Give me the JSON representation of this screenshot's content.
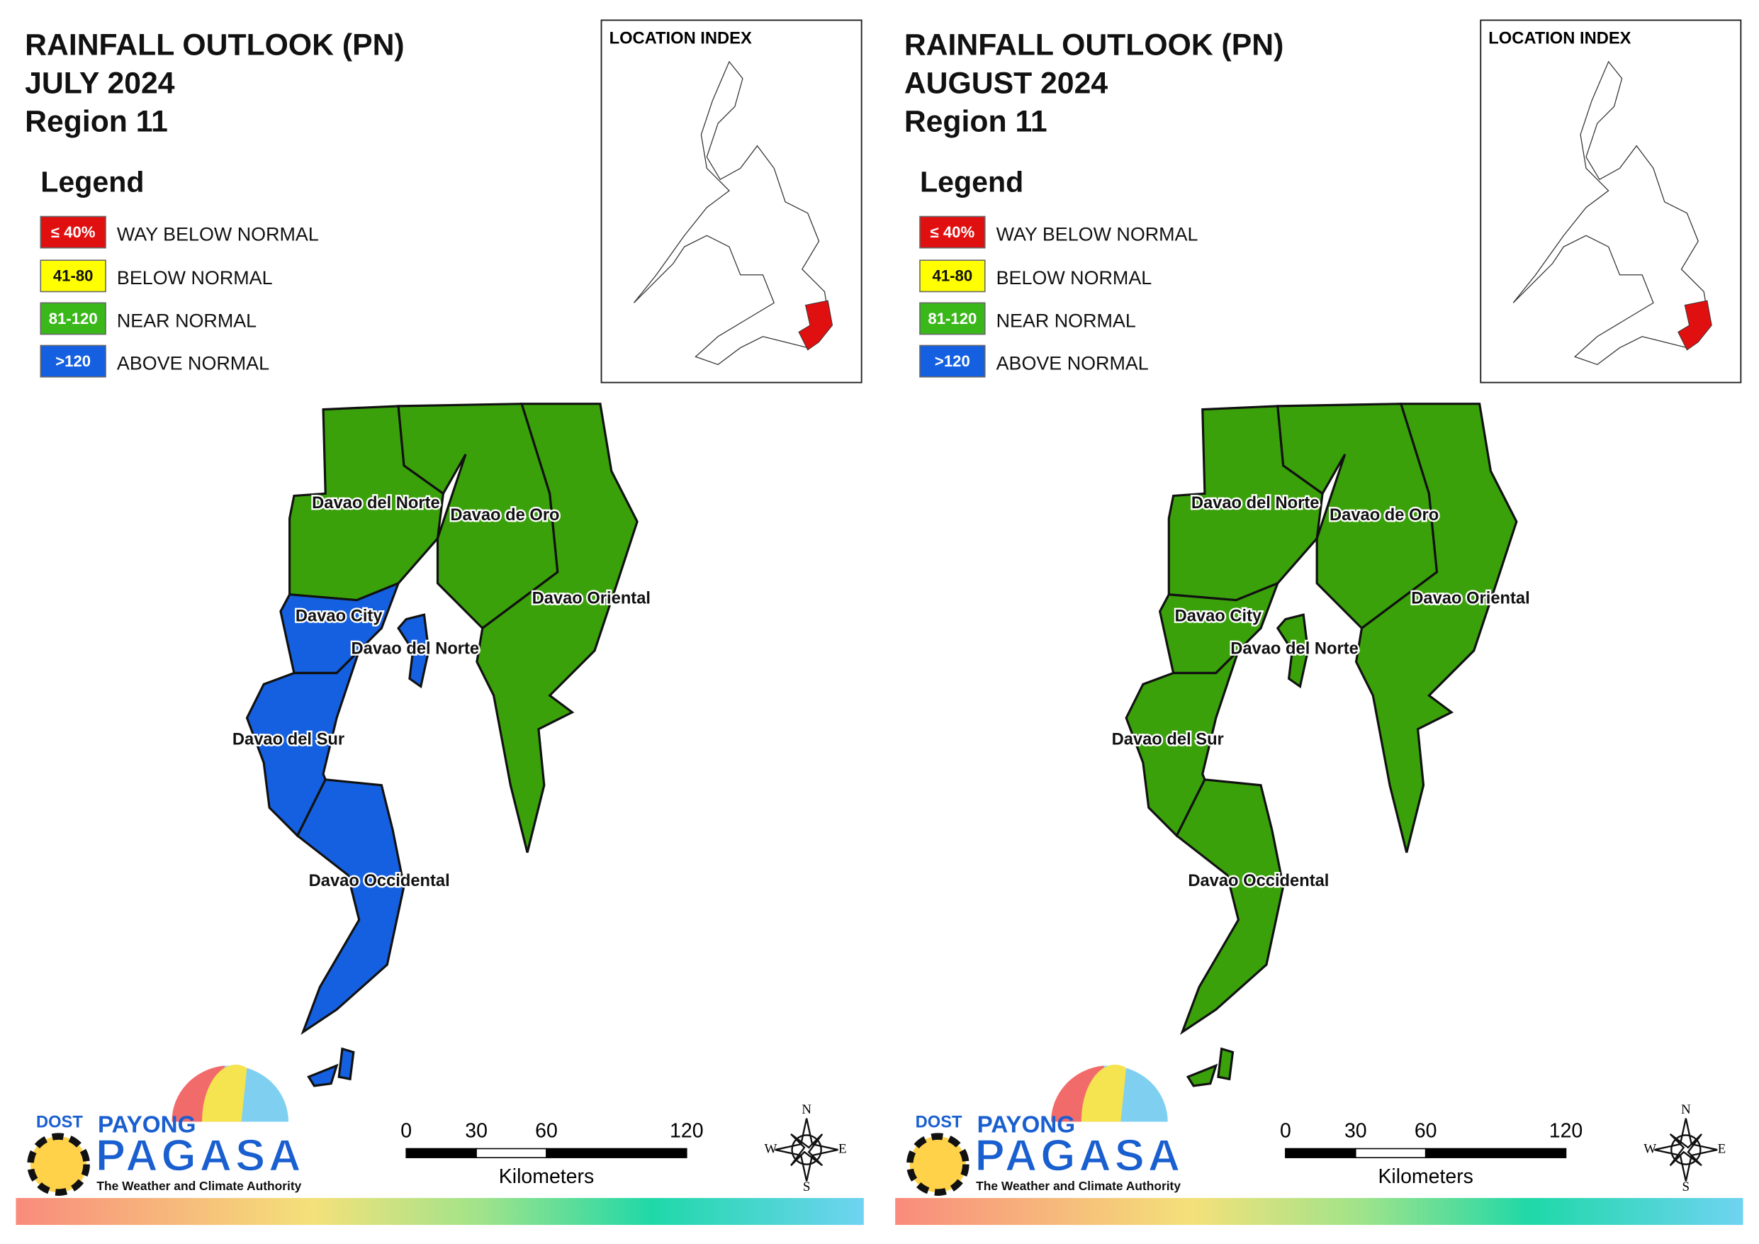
{
  "panels": [
    {
      "title": [
        "RAINFALL OUTLOOK (PN)",
        "JULY 2024",
        "Region 11"
      ],
      "legend": {
        "title": "Legend",
        "items": [
          {
            "key": "≤ 40%",
            "label": "WAY BELOW NORMAL",
            "color": "#e01010"
          },
          {
            "key": "41-80",
            "label": "BELOW NORMAL",
            "color": "#ffff00"
          },
          {
            "key": "81-120",
            "label": "NEAR NORMAL",
            "color": "#3ab81a"
          },
          {
            "key": ">120",
            "label": "ABOVE NORMAL",
            "color": "#1560e0"
          }
        ]
      },
      "location_index": "LOCATION INDEX",
      "regions": [
        {
          "label": "Davao del Norte",
          "color": "#3aa10a"
        },
        {
          "label": "Davao de Oro",
          "color": "#3aa10a"
        },
        {
          "label": "Davao Oriental",
          "color": "#3aa10a"
        },
        {
          "label": "Davao City",
          "color": "#1560e0"
        },
        {
          "label": "Davao del Norte",
          "color": "#1560e0"
        },
        {
          "label": "Davao del Sur",
          "color": "#1560e0"
        },
        {
          "label": "Davao Occidental",
          "color": "#1560e0"
        }
      ],
      "scale": {
        "ticks": [
          0,
          30,
          60,
          120
        ],
        "unit": "Kilometers"
      },
      "compass": [
        "N",
        "E",
        "S",
        "W"
      ],
      "logo": {
        "dost": "DOST",
        "payong": "PAYONG",
        "pagasa": "PAGASA",
        "tagline": "The Weather and Climate Authority"
      }
    },
    {
      "title": [
        "RAINFALL OUTLOOK (PN)",
        "AUGUST 2024",
        "Region 11"
      ],
      "legend": {
        "title": "Legend",
        "items": [
          {
            "key": "≤ 40%",
            "label": "WAY BELOW NORMAL",
            "color": "#e01010"
          },
          {
            "key": "41-80",
            "label": "BELOW NORMAL",
            "color": "#ffff00"
          },
          {
            "key": "81-120",
            "label": "NEAR NORMAL",
            "color": "#3ab81a"
          },
          {
            "key": ">120",
            "label": "ABOVE NORMAL",
            "color": "#1560e0"
          }
        ]
      },
      "location_index": "LOCATION INDEX",
      "regions": [
        {
          "label": "Davao del Norte",
          "color": "#3aa10a"
        },
        {
          "label": "Davao de Oro",
          "color": "#3aa10a"
        },
        {
          "label": "Davao Oriental",
          "color": "#3aa10a"
        },
        {
          "label": "Davao City",
          "color": "#3aa10a"
        },
        {
          "label": "Davao del Norte",
          "color": "#3aa10a"
        },
        {
          "label": "Davao del Sur",
          "color": "#3aa10a"
        },
        {
          "label": "Davao Occidental",
          "color": "#3aa10a"
        }
      ],
      "scale": {
        "ticks": [
          0,
          30,
          60,
          120
        ],
        "unit": "Kilometers"
      },
      "compass": [
        "N",
        "E",
        "S",
        "W"
      ],
      "logo": {
        "dost": "DOST",
        "payong": "PAYONG",
        "pagasa": "PAGASA",
        "tagline": "The Weather and Climate Authority"
      }
    }
  ]
}
